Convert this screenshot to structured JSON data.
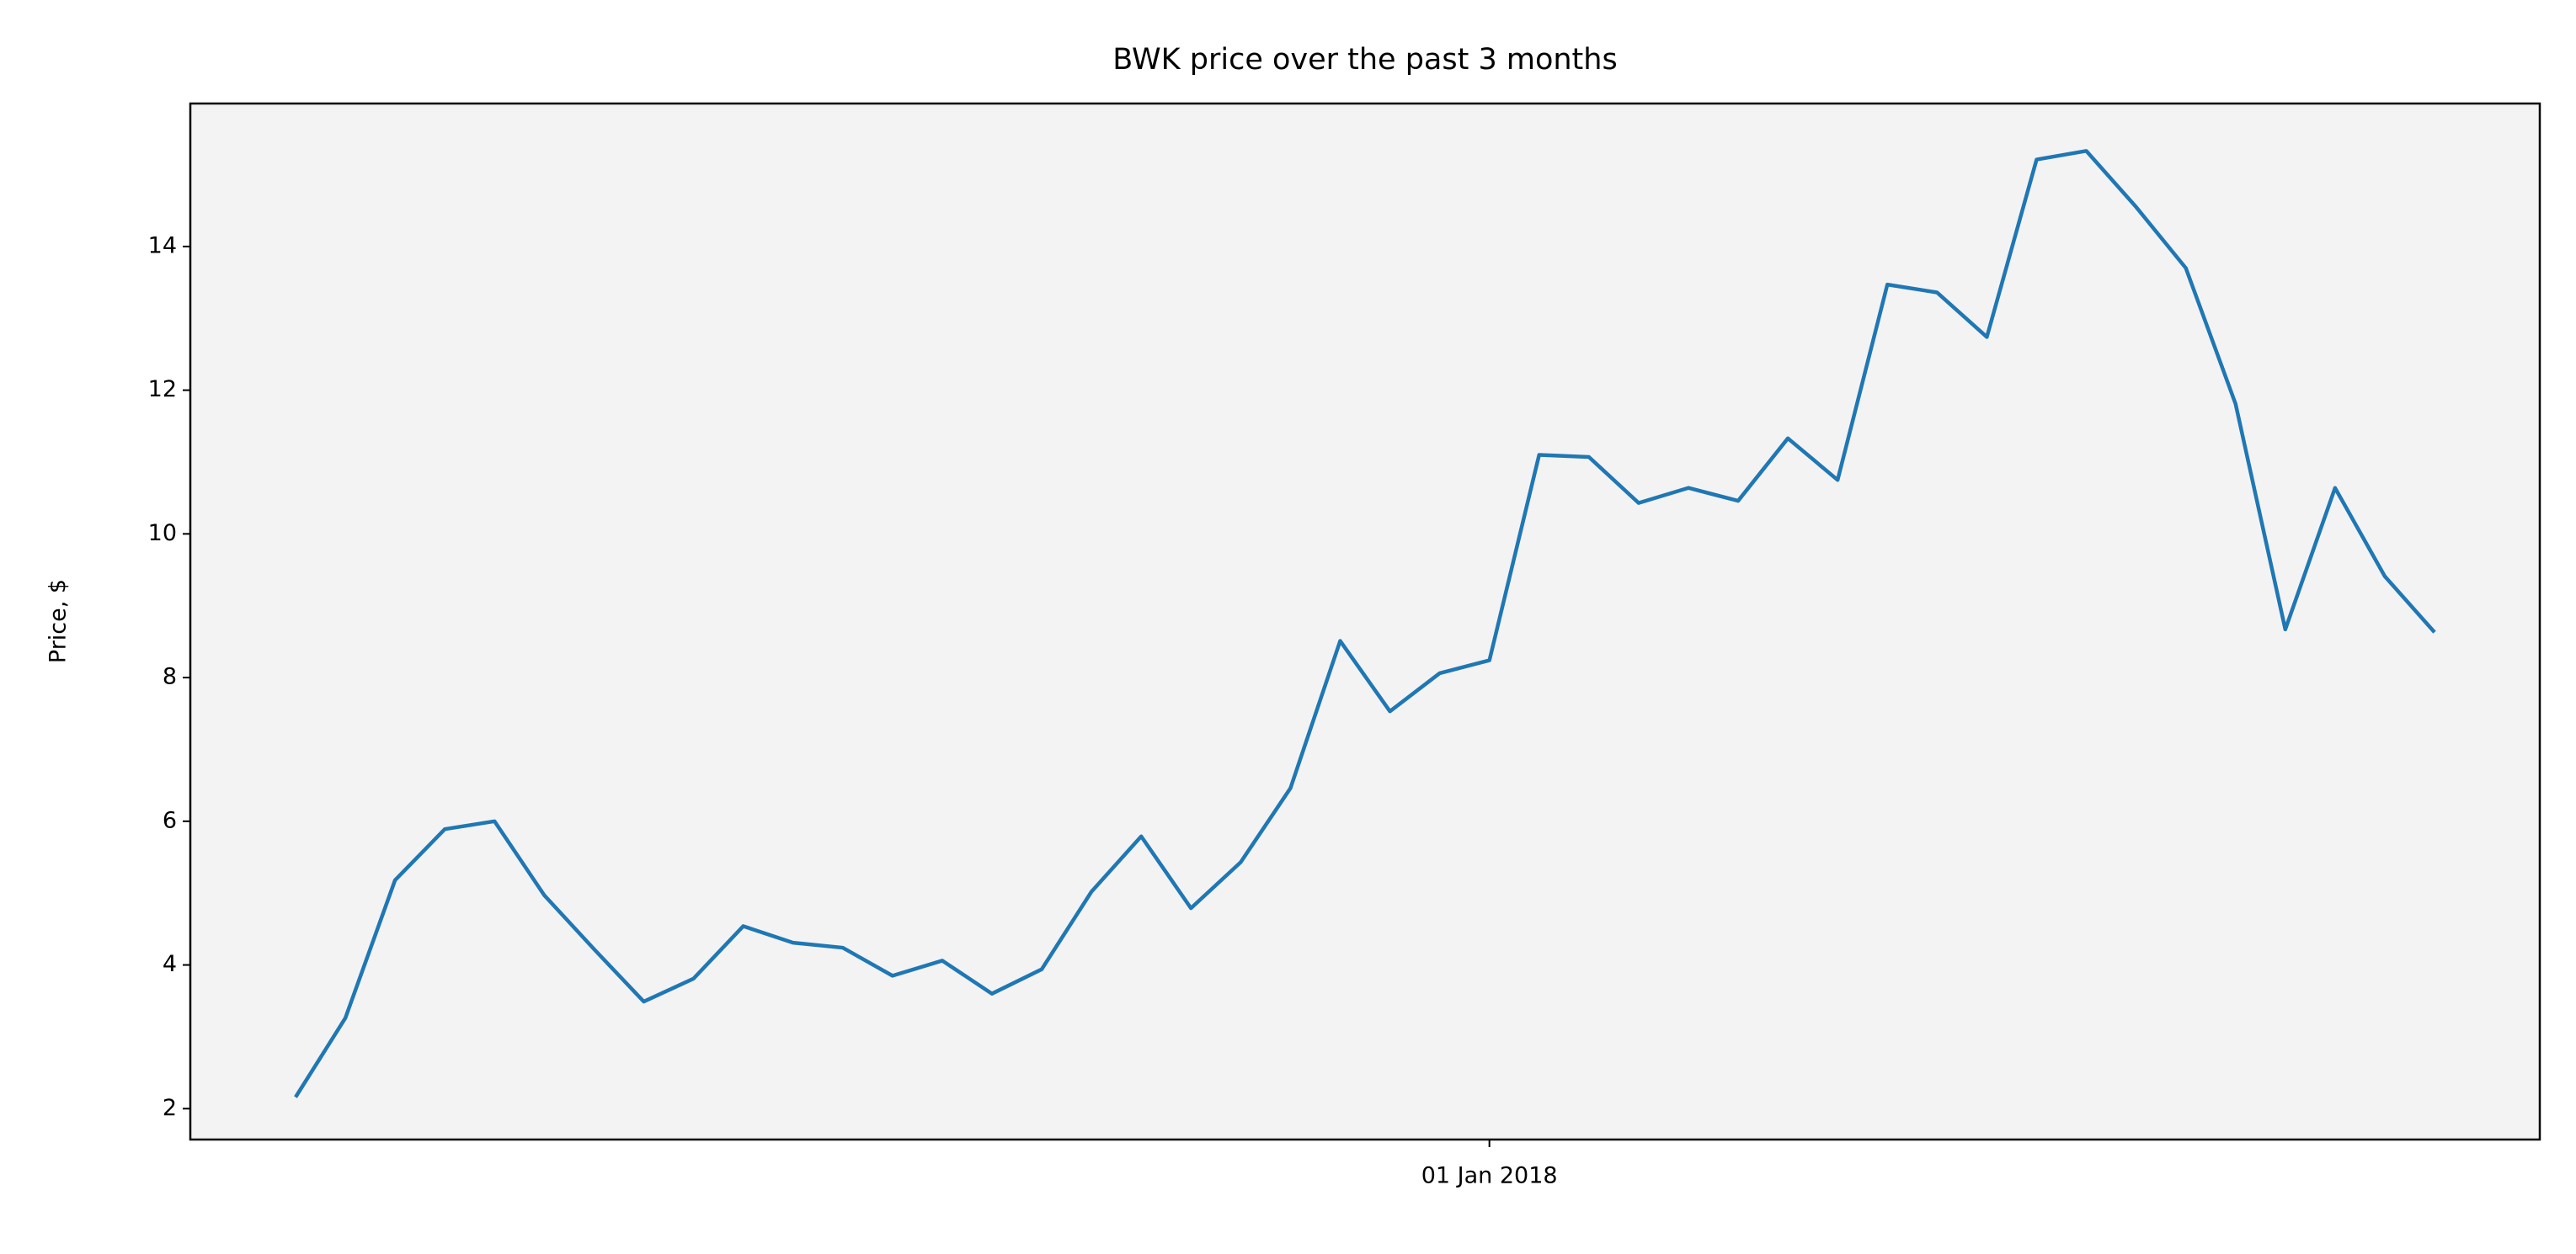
{
  "chart_data": {
    "type": "line",
    "title": "BWK price over the past 3 months",
    "y_label": "Price, $",
    "categories": [
      null,
      null,
      null,
      null,
      null,
      null,
      null,
      null,
      null,
      null,
      null,
      null,
      null,
      null,
      null,
      null,
      null,
      null,
      null,
      null,
      null,
      null,
      null,
      null,
      "01 Jan 2018",
      null,
      null,
      null,
      null,
      null,
      null,
      null,
      null,
      null,
      null,
      null,
      null,
      null,
      null,
      null,
      null,
      null,
      null,
      null
    ],
    "series": [
      {
        "name": "BWK",
        "color": "#1f77b4",
        "values": [
          2.16,
          3.26,
          5.18,
          5.89,
          6.0,
          4.97,
          4.22,
          3.49,
          3.81,
          4.54,
          4.31,
          4.24,
          3.85,
          4.06,
          3.6,
          3.94,
          5.02,
          5.79,
          4.79,
          5.43,
          6.46,
          8.51,
          7.53,
          8.06,
          8.24,
          11.1,
          11.07,
          10.43,
          10.64,
          10.46,
          11.33,
          10.75,
          13.47,
          13.36,
          12.74,
          15.21,
          15.33,
          14.55,
          13.7,
          11.81,
          8.67,
          10.64,
          9.41,
          8.63
        ]
      }
    ],
    "ylim": [
      1.57,
      15.99
    ],
    "yticks": [
      2,
      4,
      6,
      8,
      10,
      12,
      14
    ],
    "grid": false,
    "background": "#f3f3f3"
  }
}
